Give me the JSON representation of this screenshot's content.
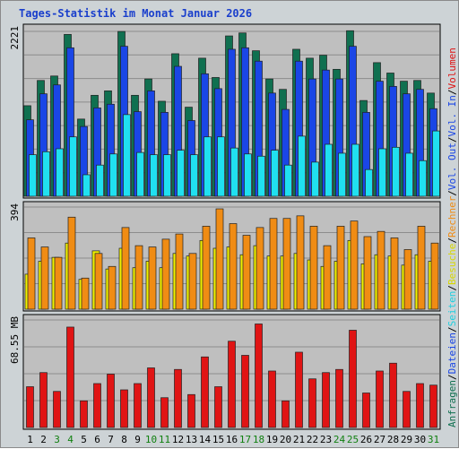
{
  "chart_data": {
    "type": "bar",
    "title": "Tages-Statistik im Monat Januar 2026",
    "x": [
      "1",
      "2",
      "3",
      "4",
      "5",
      "6",
      "7",
      "8",
      "9",
      "10",
      "11",
      "12",
      "13",
      "14",
      "15",
      "16",
      "17",
      "18",
      "19",
      "20",
      "21",
      "22",
      "23",
      "24",
      "25",
      "26",
      "27",
      "28",
      "29",
      "30",
      "31"
    ],
    "weekend_days": [
      "3",
      "4",
      "10",
      "11",
      "17",
      "18",
      "24",
      "25",
      "31"
    ],
    "panels": [
      {
        "name": "top",
        "ymax_label": "2221",
        "ymax": 2221,
        "series": [
          {
            "name": "Anfragen",
            "color": "#107050",
            "values": [
              1220,
              1560,
              1620,
              2180,
              1040,
              1360,
              1420,
              2220,
              1360,
              1580,
              1280,
              1920,
              1200,
              1860,
              1600,
              2160,
              2200,
              1960,
              1580,
              1440,
              1980,
              1860,
              1900,
              1710,
              2230,
              1290,
              1800,
              1660,
              1550,
              1560,
              1390
            ]
          },
          {
            "name": "Dateien",
            "color": "#1a46e6",
            "values": [
              1030,
              1380,
              1500,
              2000,
              940,
              1190,
              1240,
              2020,
              1140,
              1420,
              1130,
              1750,
              1020,
              1650,
              1450,
              1980,
              2000,
              1820,
              1390,
              1170,
              1820,
              1580,
              1700,
              1580,
              2020,
              1130,
              1550,
              1480,
              1380,
              1440,
              1180
            ]
          },
          {
            "name": "Seiten",
            "color": "#20e0f0",
            "values": [
              560,
              600,
              640,
              800,
              290,
              420,
              570,
              1100,
              590,
              560,
              560,
              620,
              560,
              800,
              800,
              650,
              570,
              540,
              620,
              420,
              810,
              460,
              700,
              580,
              700,
              360,
              640,
              660,
              580,
              480,
              880
            ]
          }
        ]
      },
      {
        "name": "middle",
        "ymax_label": "394",
        "ymax": 394,
        "series": [
          {
            "name": "Besuche",
            "color": "#f0f000",
            "values": [
              135,
              185,
              200,
              255,
              115,
              225,
              155,
              235,
              160,
              185,
              160,
              215,
              205,
              265,
              235,
              240,
              210,
              245,
              205,
              205,
              215,
              190,
              165,
              185,
              265,
              175,
              210,
              205,
              170,
              210,
              185
            ]
          },
          {
            "name": "Rechner",
            "color": "#f08c14",
            "values": [
              275,
              240,
              200,
              355,
              120,
              215,
              165,
              315,
              245,
              240,
              270,
              290,
              215,
              320,
              387,
              330,
              285,
              315,
              350,
              350,
              360,
              320,
              245,
              320,
              340,
              280,
              300,
              275,
              230,
              320,
              255
            ]
          }
        ]
      },
      {
        "name": "bottom",
        "ymax_label": "68.55 MB",
        "ymax": 68.55,
        "series": [
          {
            "name": "Volumen",
            "color": "#e01414",
            "values": [
              26,
              35,
              23,
              64,
              17,
              28,
              34,
              24,
              28,
              38,
              19,
              37,
              21,
              45,
              26,
              55,
              46,
              66,
              36,
              17,
              48,
              31,
              35,
              37,
              62,
              22,
              36,
              41,
              23,
              28,
              27
            ]
          }
        ]
      }
    ],
    "right_legend": [
      {
        "text": "Anfragen",
        "color": "#107050"
      },
      {
        "text": "/",
        "color": "#000000"
      },
      {
        "text": "Dateien",
        "color": "#1a46e6"
      },
      {
        "text": "/",
        "color": "#000000"
      },
      {
        "text": "Seiten",
        "color": "#20d0e0"
      },
      {
        "text": "/",
        "color": "#000000"
      },
      {
        "text": "Besuche",
        "color": "#d8d800"
      },
      {
        "text": "/",
        "color": "#000000"
      },
      {
        "text": "Rechner",
        "color": "#f08c14"
      },
      {
        "text": "/",
        "color": "#000000"
      },
      {
        "text": "Vol. Out",
        "color": "#1a46e6"
      },
      {
        "text": "/",
        "color": "#000000"
      },
      {
        "text": "Vol. In",
        "color": "#1a46e6"
      },
      {
        "text": "/",
        "color": "#000000"
      },
      {
        "text": "Volumen",
        "color": "#e01414"
      }
    ],
    "colors": {
      "weekday_label": "#000000",
      "weekend_label": "#108010",
      "panel_bg": "#bfbfbf",
      "grid": "#8c8c8c"
    }
  }
}
